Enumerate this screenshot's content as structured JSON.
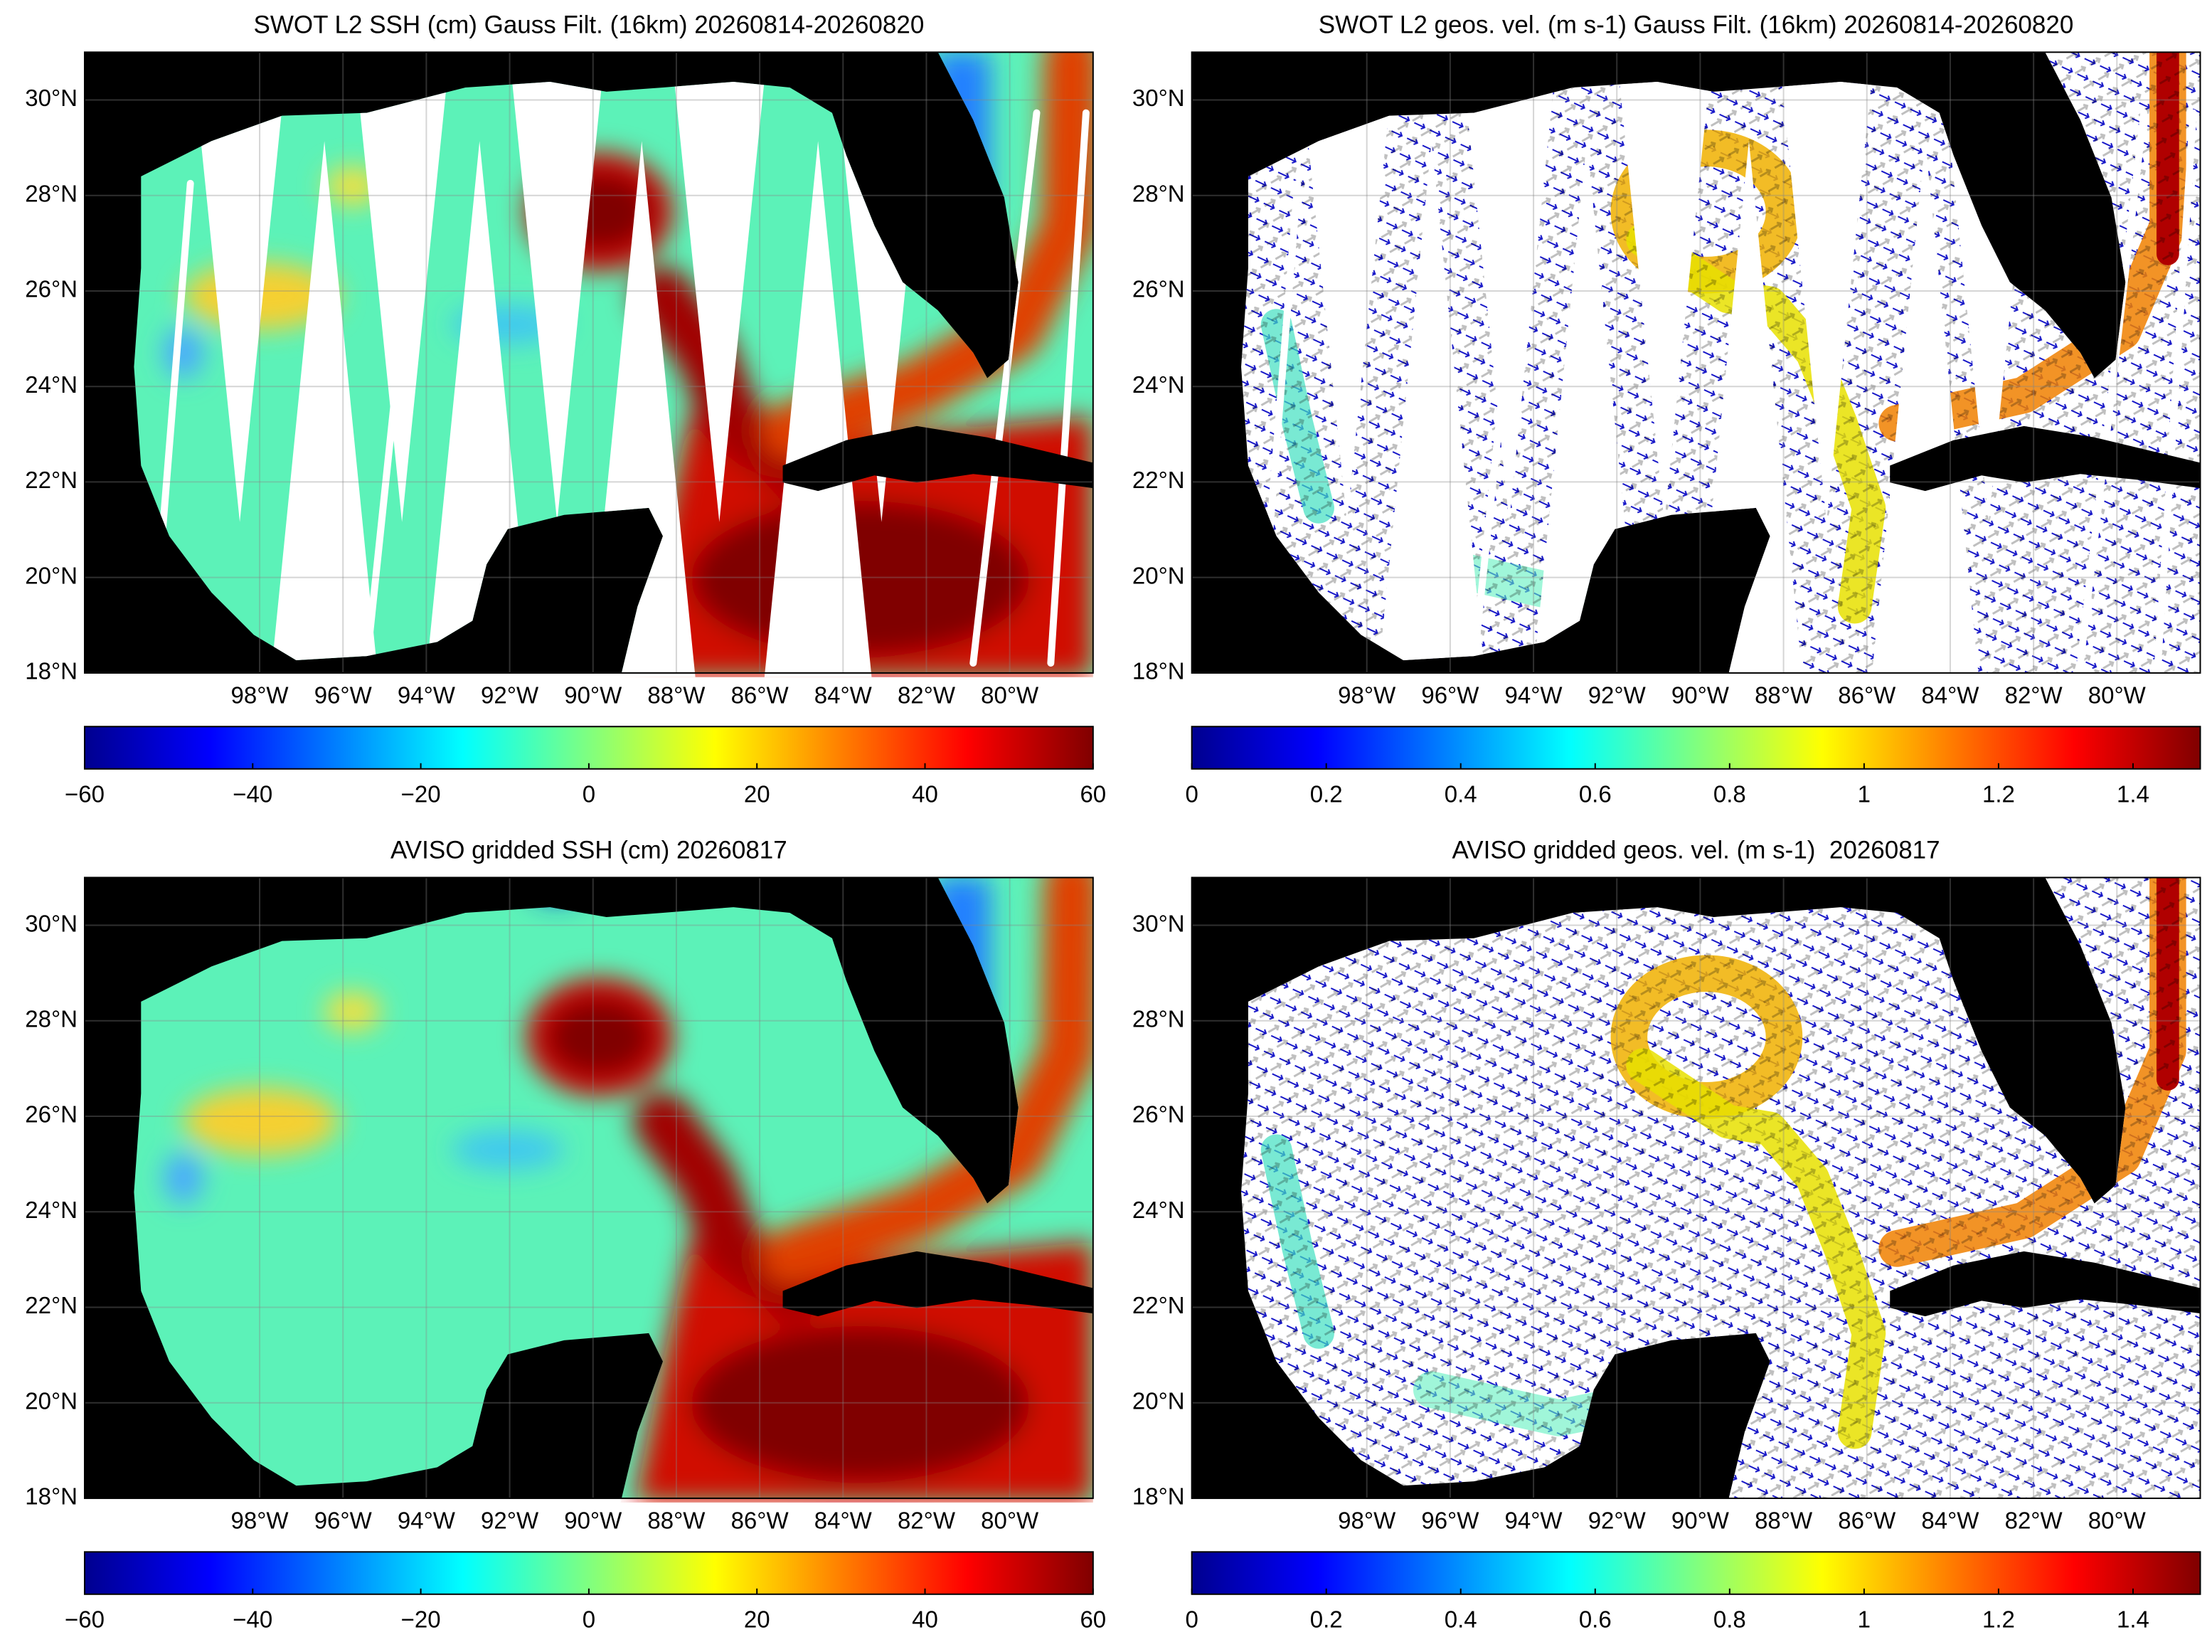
{
  "panels": [
    {
      "type": "ssh",
      "title": "SWOT L2 SSH (cm) Gauss Filt. (16km) 20260814-20260820",
      "xlim": [
        -102.2,
        -78
      ],
      "ylim": [
        18,
        31
      ],
      "xticks": [
        {
          "value": -98,
          "label": "98°W"
        },
        {
          "value": -96,
          "label": "96°W"
        },
        {
          "value": -94,
          "label": "94°W"
        },
        {
          "value": -92,
          "label": "92°W"
        },
        {
          "value": -90,
          "label": "90°W"
        },
        {
          "value": -88,
          "label": "88°W"
        },
        {
          "value": -86,
          "label": "86°W"
        },
        {
          "value": -84,
          "label": "84°W"
        },
        {
          "value": -82,
          "label": "82°W"
        },
        {
          "value": -80,
          "label": "80°W"
        }
      ],
      "yticks": [
        {
          "value": 18,
          "label": "18°N"
        },
        {
          "value": 20,
          "label": "20°N"
        },
        {
          "value": 22,
          "label": "22°N"
        },
        {
          "value": 24,
          "label": "24°N"
        },
        {
          "value": 26,
          "label": "26°N"
        },
        {
          "value": 28,
          "label": "28°N"
        },
        {
          "value": 30,
          "label": "30°N"
        }
      ],
      "colorbar": {
        "lim": [
          -60,
          60
        ],
        "ticks": [
          {
            "value": -60,
            "label": "−60"
          },
          {
            "value": -40,
            "label": "−40"
          },
          {
            "value": -20,
            "label": "−20"
          },
          0,
          20,
          40,
          60
        ]
      }
    },
    {
      "type": "velocity",
      "title": "SWOT L2 geos. vel. (m s-1) Gauss Filt. (16km) 20260814-20260820",
      "xlim": [
        -102.2,
        -78
      ],
      "ylim": [
        18,
        31
      ],
      "xticks": [
        {
          "value": -98,
          "label": "98°W"
        },
        {
          "value": -96,
          "label": "96°W"
        },
        {
          "value": -94,
          "label": "94°W"
        },
        {
          "value": -92,
          "label": "92°W"
        },
        {
          "value": -90,
          "label": "90°W"
        },
        {
          "value": -88,
          "label": "88°W"
        },
        {
          "value": -86,
          "label": "86°W"
        },
        {
          "value": -84,
          "label": "84°W"
        },
        {
          "value": -82,
          "label": "82°W"
        },
        {
          "value": -80,
          "label": "80°W"
        }
      ],
      "yticks": [
        {
          "value": 18,
          "label": "18°N"
        },
        {
          "value": 20,
          "label": "20°N"
        },
        {
          "value": 22,
          "label": "22°N"
        },
        {
          "value": 24,
          "label": "24°N"
        },
        {
          "value": 26,
          "label": "26°N"
        },
        {
          "value": 28,
          "label": "28°N"
        },
        {
          "value": 30,
          "label": "30°N"
        }
      ],
      "colorbar": {
        "lim": [
          0,
          1.5
        ],
        "ticks": [
          0,
          0.2,
          0.4,
          0.6,
          0.8,
          1,
          1.2,
          1.4
        ]
      }
    },
    {
      "type": "ssh",
      "title": "AVISO gridded SSH (cm) 20260817",
      "xlim": [
        -102.2,
        -78
      ],
      "ylim": [
        18,
        31
      ],
      "xticks": [
        {
          "value": -98,
          "label": "98°W"
        },
        {
          "value": -96,
          "label": "96°W"
        },
        {
          "value": -94,
          "label": "94°W"
        },
        {
          "value": -92,
          "label": "92°W"
        },
        {
          "value": -90,
          "label": "90°W"
        },
        {
          "value": -88,
          "label": "88°W"
        },
        {
          "value": -86,
          "label": "86°W"
        },
        {
          "value": -84,
          "label": "84°W"
        },
        {
          "value": -82,
          "label": "82°W"
        },
        {
          "value": -80,
          "label": "80°W"
        }
      ],
      "yticks": [
        {
          "value": 18,
          "label": "18°N"
        },
        {
          "value": 20,
          "label": "20°N"
        },
        {
          "value": 22,
          "label": "22°N"
        },
        {
          "value": 24,
          "label": "24°N"
        },
        {
          "value": 26,
          "label": "26°N"
        },
        {
          "value": 28,
          "label": "28°N"
        },
        {
          "value": 30,
          "label": "30°N"
        }
      ],
      "colorbar": {
        "lim": [
          -60,
          60
        ],
        "ticks": [
          {
            "value": -60,
            "label": "−60"
          },
          {
            "value": -40,
            "label": "−40"
          },
          {
            "value": -20,
            "label": "−20"
          },
          0,
          20,
          40,
          60
        ]
      }
    },
    {
      "type": "velocity",
      "title": "AVISO gridded geos. vel. (m s-1)  20260817",
      "xlim": [
        -102.2,
        -78
      ],
      "ylim": [
        18,
        31
      ],
      "xticks": [
        {
          "value": -98,
          "label": "98°W"
        },
        {
          "value": -96,
          "label": "96°W"
        },
        {
          "value": -94,
          "label": "94°W"
        },
        {
          "value": -92,
          "label": "92°W"
        },
        {
          "value": -90,
          "label": "90°W"
        },
        {
          "value": -88,
          "label": "88°W"
        },
        {
          "value": -86,
          "label": "86°W"
        },
        {
          "value": -84,
          "label": "84°W"
        },
        {
          "value": -82,
          "label": "82°W"
        },
        {
          "value": -80,
          "label": "80°W"
        }
      ],
      "yticks": [
        {
          "value": 18,
          "label": "18°N"
        },
        {
          "value": 20,
          "label": "20°N"
        },
        {
          "value": 22,
          "label": "22°N"
        },
        {
          "value": 24,
          "label": "24°N"
        },
        {
          "value": 26,
          "label": "26°N"
        },
        {
          "value": 28,
          "label": "28°N"
        },
        {
          "value": 30,
          "label": "30°N"
        }
      ],
      "colorbar": {
        "lim": [
          0,
          1.5
        ],
        "ticks": [
          0,
          0.2,
          0.4,
          0.6,
          0.8,
          1,
          1.2,
          1.4
        ]
      }
    }
  ]
}
